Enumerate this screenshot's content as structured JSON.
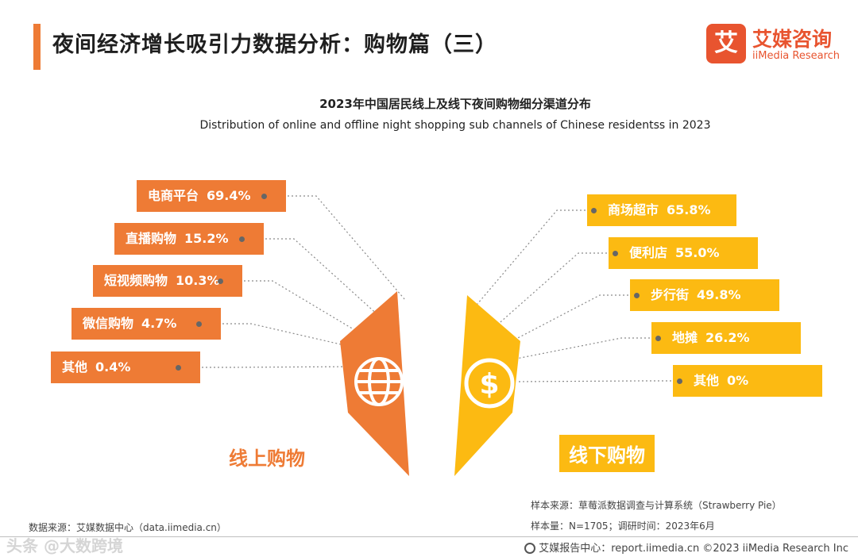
{
  "header": {
    "title": "夜间经济增长吸引力数据分析：购物篇（三）",
    "logo_mark": "艾",
    "logo_cn": "艾媒咨询",
    "logo_en": "iiMedia Research"
  },
  "colors": {
    "online": "#EE7B35",
    "offline": "#FCBA12",
    "accent": "#EE7B35"
  },
  "chart_data": {
    "type": "bar",
    "title": "2023年中国居民线上及线下夜间购物细分渠道分布",
    "subtitle": "Distribution of online and offline night shopping sub channels of Chinese residentss in 2023",
    "unit": "%",
    "series": [
      {
        "name": "线上购物",
        "icon": "globe-icon",
        "items": [
          {
            "label": "电商平台",
            "value": 69.4,
            "display": "69.4%"
          },
          {
            "label": "直播购物",
            "value": 15.2,
            "display": "15.2%"
          },
          {
            "label": "短视频购物",
            "value": 10.3,
            "display": "10.3%"
          },
          {
            "label": "微信购物",
            "value": 4.7,
            "display": "4.7%"
          },
          {
            "label": "其他",
            "value": 0.4,
            "display": "0.4%"
          }
        ]
      },
      {
        "name": "线下购物",
        "icon": "dollar-icon",
        "items": [
          {
            "label": "商场超市",
            "value": 65.8,
            "display": "65.8%"
          },
          {
            "label": "便利店",
            "value": 55.0,
            "display": "55.0%"
          },
          {
            "label": "步行街",
            "value": 49.8,
            "display": "49.8%"
          },
          {
            "label": "地摊",
            "value": 26.2,
            "display": "26.2%"
          },
          {
            "label": "其他",
            "value": 0,
            "display": "0%"
          }
        ]
      }
    ]
  },
  "sources": {
    "left": "数据来源：艾媒数据中心（data.iimedia.cn）",
    "right_sample_source": "样本来源：草莓派数据调查与计算系统（Strawberry Pie）",
    "right_sample_size": "样本量：N=1705；调研时间：2023年6月"
  },
  "footer": {
    "text": "艾媒报告中心：report.iimedia.cn    ©2023  iiMedia Research  Inc"
  },
  "watermark": "头条 @大数跨境"
}
